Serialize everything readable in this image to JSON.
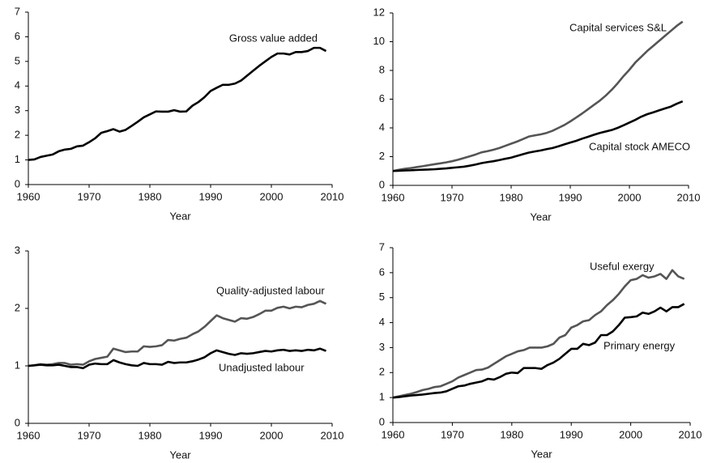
{
  "chart_data": [
    {
      "type": "line",
      "xlabel": "Year",
      "x": [
        1960,
        1961,
        1962,
        1963,
        1964,
        1965,
        1966,
        1967,
        1968,
        1969,
        1970,
        1971,
        1972,
        1973,
        1974,
        1975,
        1976,
        1977,
        1978,
        1979,
        1980,
        1981,
        1982,
        1983,
        1984,
        1985,
        1986,
        1987,
        1988,
        1989,
        1990,
        1991,
        1992,
        1993,
        1994,
        1995,
        1996,
        1997,
        1998,
        1999,
        2000,
        2001,
        2002,
        2003,
        2004,
        2005,
        2006,
        2007,
        2008,
        2009
      ],
      "xlim": [
        1960,
        2010
      ],
      "xticks": [
        1960,
        1970,
        1980,
        1990,
        2000,
        2010
      ],
      "ylim": [
        0,
        7
      ],
      "yticks": [
        0,
        1,
        2,
        3,
        4,
        5,
        6,
        7
      ],
      "series": [
        {
          "name": "Gross value added",
          "color": "#000000",
          "values": [
            1.0,
            1.02,
            1.12,
            1.17,
            1.22,
            1.35,
            1.42,
            1.45,
            1.55,
            1.58,
            1.72,
            1.88,
            2.1,
            2.17,
            2.25,
            2.15,
            2.22,
            2.38,
            2.55,
            2.73,
            2.85,
            2.97,
            2.96,
            2.96,
            3.02,
            2.96,
            2.97,
            3.2,
            3.35,
            3.55,
            3.8,
            3.93,
            4.05,
            4.05,
            4.1,
            4.22,
            4.42,
            4.62,
            4.82,
            5.0,
            5.18,
            5.32,
            5.32,
            5.28,
            5.38,
            5.38,
            5.42,
            5.55,
            5.55,
            5.42
          ]
        }
      ]
    },
    {
      "type": "line",
      "xlabel": "Year",
      "x": [
        1960,
        1961,
        1962,
        1963,
        1964,
        1965,
        1966,
        1967,
        1968,
        1969,
        1970,
        1971,
        1972,
        1973,
        1974,
        1975,
        1976,
        1977,
        1978,
        1979,
        1980,
        1981,
        1982,
        1983,
        1984,
        1985,
        1986,
        1987,
        1988,
        1989,
        1990,
        1991,
        1992,
        1993,
        1994,
        1995,
        1996,
        1997,
        1998,
        1999,
        2000,
        2001,
        2002,
        2003,
        2004,
        2005,
        2006,
        2007,
        2008,
        2009
      ],
      "xlim": [
        1960,
        2010
      ],
      "xticks": [
        1960,
        1970,
        1980,
        1990,
        2000,
        2010
      ],
      "ylim": [
        0,
        12
      ],
      "yticks": [
        0,
        2,
        4,
        6,
        8,
        10,
        12
      ],
      "series": [
        {
          "name": "Capital services S&L",
          "color": "#555555",
          "values": [
            1.0,
            1.08,
            1.15,
            1.2,
            1.27,
            1.33,
            1.4,
            1.47,
            1.53,
            1.6,
            1.68,
            1.78,
            1.9,
            2.02,
            2.15,
            2.3,
            2.38,
            2.48,
            2.6,
            2.75,
            2.9,
            3.05,
            3.22,
            3.4,
            3.48,
            3.55,
            3.65,
            3.8,
            4.0,
            4.2,
            4.45,
            4.72,
            5.0,
            5.3,
            5.6,
            5.9,
            6.25,
            6.65,
            7.1,
            7.6,
            8.05,
            8.55,
            8.95,
            9.35,
            9.7,
            10.05,
            10.4,
            10.75,
            11.1,
            11.4
          ]
        },
        {
          "name": "Capital stock AMECO",
          "color": "#000000",
          "values": [
            1.0,
            1.02,
            1.04,
            1.05,
            1.07,
            1.09,
            1.1,
            1.12,
            1.15,
            1.18,
            1.22,
            1.26,
            1.3,
            1.37,
            1.45,
            1.55,
            1.62,
            1.68,
            1.76,
            1.85,
            1.93,
            2.05,
            2.17,
            2.28,
            2.36,
            2.43,
            2.52,
            2.6,
            2.72,
            2.85,
            2.98,
            3.1,
            3.25,
            3.38,
            3.52,
            3.65,
            3.75,
            3.85,
            4.0,
            4.18,
            4.37,
            4.56,
            4.78,
            4.95,
            5.08,
            5.22,
            5.35,
            5.48,
            5.68,
            5.85
          ]
        }
      ]
    },
    {
      "type": "line",
      "xlabel": "Year",
      "x": [
        1960,
        1961,
        1962,
        1963,
        1964,
        1965,
        1966,
        1967,
        1968,
        1969,
        1970,
        1971,
        1972,
        1973,
        1974,
        1975,
        1976,
        1977,
        1978,
        1979,
        1980,
        1981,
        1982,
        1983,
        1984,
        1985,
        1986,
        1987,
        1988,
        1989,
        1990,
        1991,
        1992,
        1993,
        1994,
        1995,
        1996,
        1997,
        1998,
        1999,
        2000,
        2001,
        2002,
        2003,
        2004,
        2005,
        2006,
        2007,
        2008,
        2009
      ],
      "xlim": [
        1960,
        2010
      ],
      "xticks": [
        1960,
        1970,
        1980,
        1990,
        2000,
        2010
      ],
      "ylim": [
        0,
        3
      ],
      "yticks": [
        0,
        1,
        2,
        3
      ],
      "series": [
        {
          "name": "Quality-adjusted labour",
          "color": "#555555",
          "values": [
            1.0,
            1.01,
            1.03,
            1.02,
            1.03,
            1.05,
            1.05,
            1.02,
            1.03,
            1.02,
            1.08,
            1.12,
            1.14,
            1.16,
            1.3,
            1.27,
            1.24,
            1.25,
            1.25,
            1.34,
            1.33,
            1.34,
            1.36,
            1.45,
            1.44,
            1.47,
            1.49,
            1.55,
            1.6,
            1.68,
            1.78,
            1.88,
            1.83,
            1.8,
            1.77,
            1.83,
            1.82,
            1.85,
            1.9,
            1.96,
            1.96,
            2.01,
            2.03,
            2.0,
            2.03,
            2.02,
            2.06,
            2.08,
            2.13,
            2.08
          ]
        },
        {
          "name": "Unadjusted labour",
          "color": "#000000",
          "values": [
            1.0,
            1.01,
            1.02,
            1.01,
            1.01,
            1.02,
            1.0,
            0.98,
            0.98,
            0.96,
            1.02,
            1.04,
            1.03,
            1.03,
            1.1,
            1.06,
            1.03,
            1.01,
            1.0,
            1.05,
            1.03,
            1.03,
            1.02,
            1.07,
            1.05,
            1.06,
            1.06,
            1.08,
            1.11,
            1.15,
            1.22,
            1.27,
            1.24,
            1.21,
            1.19,
            1.22,
            1.21,
            1.22,
            1.24,
            1.26,
            1.25,
            1.27,
            1.28,
            1.26,
            1.27,
            1.26,
            1.28,
            1.27,
            1.3,
            1.26
          ]
        }
      ]
    },
    {
      "type": "line",
      "xlabel": "Year",
      "x": [
        1960,
        1961,
        1962,
        1963,
        1964,
        1965,
        1966,
        1967,
        1968,
        1969,
        1970,
        1971,
        1972,
        1973,
        1974,
        1975,
        1976,
        1977,
        1978,
        1979,
        1980,
        1981,
        1982,
        1983,
        1984,
        1985,
        1986,
        1987,
        1988,
        1989,
        1990,
        1991,
        1992,
        1993,
        1994,
        1995,
        1996,
        1997,
        1998,
        1999,
        2000,
        2001,
        2002,
        2003,
        2004,
        2005,
        2006,
        2007,
        2008,
        2009
      ],
      "xlim": [
        1960,
        2010
      ],
      "xticks": [
        1960,
        1970,
        1980,
        1990,
        2000,
        2010
      ],
      "ylim": [
        0,
        7
      ],
      "yticks": [
        0,
        1,
        2,
        3,
        4,
        5,
        6,
        7
      ],
      "series": [
        {
          "name": "Useful exergy",
          "color": "#555555",
          "values": [
            1.0,
            1.05,
            1.1,
            1.15,
            1.22,
            1.3,
            1.35,
            1.42,
            1.45,
            1.55,
            1.65,
            1.8,
            1.9,
            2.0,
            2.1,
            2.12,
            2.2,
            2.35,
            2.5,
            2.65,
            2.75,
            2.85,
            2.9,
            3.0,
            3.0,
            3.0,
            3.05,
            3.15,
            3.4,
            3.5,
            3.8,
            3.9,
            4.05,
            4.1,
            4.3,
            4.45,
            4.7,
            4.9,
            5.15,
            5.45,
            5.7,
            5.75,
            5.9,
            5.8,
            5.85,
            5.95,
            5.75,
            6.1,
            5.85,
            5.75
          ]
        },
        {
          "name": "Primary energy",
          "color": "#000000",
          "values": [
            1.0,
            1.02,
            1.05,
            1.08,
            1.1,
            1.12,
            1.15,
            1.18,
            1.2,
            1.25,
            1.35,
            1.45,
            1.48,
            1.55,
            1.6,
            1.65,
            1.75,
            1.72,
            1.82,
            1.95,
            2.0,
            1.98,
            2.18,
            2.18,
            2.18,
            2.15,
            2.3,
            2.4,
            2.55,
            2.75,
            2.95,
            2.95,
            3.15,
            3.1,
            3.2,
            3.5,
            3.5,
            3.65,
            3.9,
            4.2,
            4.22,
            4.25,
            4.4,
            4.35,
            4.45,
            4.6,
            4.45,
            4.62,
            4.62,
            4.75
          ]
        }
      ]
    }
  ]
}
